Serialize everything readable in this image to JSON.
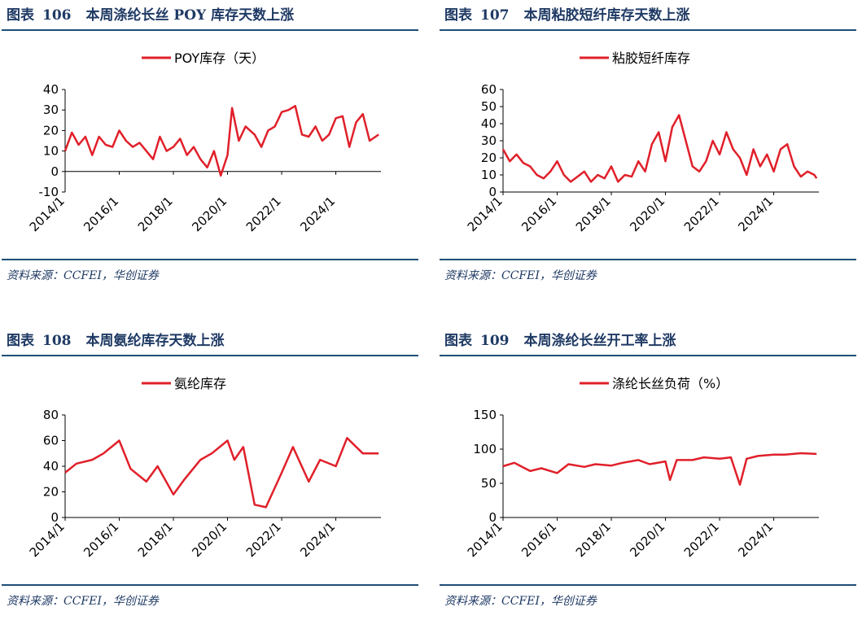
{
  "charts": [
    {
      "figure_label": "图表",
      "figure_number": "106",
      "title": "本周涤纶长丝 POY 库存天数上涨",
      "source": "资料来源：CCFEI，华创证券",
      "chart_data": {
        "type": "line",
        "legend": "POY库存（天）",
        "legend_position": "top-center",
        "grid": false,
        "ylim": [
          -10,
          40
        ],
        "yticks": [
          "-10",
          "0",
          "10",
          "20",
          "30",
          "40"
        ],
        "xticks": [
          "2014/1",
          "2016/1",
          "2018/1",
          "2020/1",
          "2022/1",
          "2024/1"
        ],
        "series": [
          {
            "color": "#e0202a",
            "x": [
              "2014/1",
              "2014/4",
              "2014/7",
              "2014/10",
              "2015/1",
              "2015/4",
              "2015/7",
              "2015/10",
              "2016/1",
              "2016/4",
              "2016/7",
              "2016/10",
              "2017/1",
              "2017/4",
              "2017/7",
              "2017/10",
              "2018/1",
              "2018/4",
              "2018/7",
              "2018/10",
              "2019/1",
              "2019/4",
              "2019/7",
              "2019/10",
              "2020/1",
              "2020/3",
              "2020/6",
              "2020/9",
              "2021/1",
              "2021/4",
              "2021/7",
              "2021/10",
              "2022/1",
              "2022/4",
              "2022/7",
              "2022/10",
              "2023/1",
              "2023/4",
              "2023/7",
              "2023/10",
              "2024/1",
              "2024/4",
              "2024/7",
              "2024/10",
              "2025/1",
              "2025/4",
              "2025/8"
            ],
            "values": [
              10,
              19,
              13,
              17,
              8,
              17,
              13,
              12,
              20,
              15,
              12,
              14,
              10,
              6,
              17,
              10,
              12,
              16,
              8,
              12,
              6,
              2,
              10,
              -2,
              8,
              31,
              15,
              22,
              18,
              12,
              20,
              22,
              29,
              30,
              32,
              18,
              17,
              22,
              15,
              18,
              26,
              27,
              12,
              24,
              28,
              15,
              18
            ]
          }
        ]
      }
    },
    {
      "figure_label": "图表",
      "figure_number": "107",
      "title": "本周粘胶短纤库存天数上涨",
      "source": "资料来源：CCFEI，华创证券",
      "chart_data": {
        "type": "line",
        "legend": "粘胶短纤库存",
        "legend_position": "top-center",
        "grid": false,
        "ylim": [
          0,
          60
        ],
        "yticks": [
          "0",
          "10",
          "20",
          "30",
          "40",
          "50",
          "60"
        ],
        "xticks": [
          "2014/1",
          "2016/1",
          "2018/1",
          "2020/1",
          "2022/1",
          "2024/1"
        ],
        "series": [
          {
            "color": "#e0202a",
            "x": [
              "2014/1",
              "2014/4",
              "2014/7",
              "2014/10",
              "2015/1",
              "2015/4",
              "2015/7",
              "2015/10",
              "2016/1",
              "2016/4",
              "2016/7",
              "2016/10",
              "2017/1",
              "2017/4",
              "2017/7",
              "2017/10",
              "2018/1",
              "2018/4",
              "2018/7",
              "2018/10",
              "2019/1",
              "2019/4",
              "2019/7",
              "2019/10",
              "2020/1",
              "2020/4",
              "2020/7",
              "2020/10",
              "2021/1",
              "2021/4",
              "2021/7",
              "2021/10",
              "2022/1",
              "2022/4",
              "2022/7",
              "2022/10",
              "2023/1",
              "2023/4",
              "2023/7",
              "2023/10",
              "2024/1",
              "2024/4",
              "2024/7",
              "2024/10",
              "2025/1",
              "2025/4",
              "2025/7",
              "2025/8"
            ],
            "values": [
              25,
              18,
              22,
              17,
              15,
              10,
              8,
              12,
              18,
              10,
              6,
              9,
              12,
              6,
              10,
              8,
              15,
              6,
              10,
              9,
              18,
              12,
              28,
              35,
              18,
              38,
              45,
              30,
              15,
              12,
              18,
              30,
              22,
              35,
              25,
              20,
              10,
              25,
              15,
              22,
              12,
              25,
              28,
              15,
              9,
              12,
              10,
              8
            ]
          }
        ]
      }
    },
    {
      "figure_label": "图表",
      "figure_number": "108",
      "title": "本周氨纶库存天数上涨",
      "source": "资料来源：CCFEI，华创证券",
      "chart_data": {
        "type": "line",
        "legend": "氨纶库存",
        "legend_position": "top-center",
        "grid": false,
        "ylim": [
          0,
          80
        ],
        "yticks": [
          "0",
          "20",
          "40",
          "60",
          "80"
        ],
        "xticks": [
          "2014/1",
          "2016/1",
          "2018/1",
          "2020/1",
          "2022/1",
          "2024/1"
        ],
        "series": [
          {
            "color": "#e0202a",
            "x": [
              "2014/1",
              "2014/6",
              "2015/1",
              "2015/6",
              "2016/1",
              "2016/6",
              "2017/1",
              "2017/6",
              "2018/1",
              "2018/6",
              "2019/1",
              "2019/6",
              "2020/1",
              "2020/4",
              "2020/8",
              "2021/1",
              "2021/6",
              "2022/1",
              "2022/6",
              "2023/1",
              "2023/6",
              "2024/1",
              "2024/6",
              "2025/1",
              "2025/8"
            ],
            "values": [
              35,
              42,
              45,
              50,
              60,
              38,
              28,
              40,
              18,
              30,
              45,
              50,
              60,
              45,
              55,
              10,
              8,
              35,
              55,
              28,
              45,
              40,
              62,
              50,
              50
            ]
          }
        ]
      }
    },
    {
      "figure_label": "图表",
      "figure_number": "109",
      "title": "本周涤纶长丝开工率上涨",
      "source": "资料来源：CCFEI，华创证券",
      "chart_data": {
        "type": "line",
        "legend": "涤纶长丝负荷（%）",
        "legend_position": "top-center",
        "grid": false,
        "ylim": [
          0,
          150
        ],
        "yticks": [
          "0",
          "50",
          "100",
          "150"
        ],
        "xticks": [
          "2014/1",
          "2016/1",
          "2018/1",
          "2020/1",
          "2022/1",
          "2024/1"
        ],
        "series": [
          {
            "color": "#e0202a",
            "x": [
              "2014/1",
              "2014/6",
              "2015/1",
              "2015/6",
              "2016/1",
              "2016/6",
              "2017/1",
              "2017/6",
              "2018/1",
              "2018/6",
              "2019/1",
              "2019/6",
              "2020/1",
              "2020/3",
              "2020/6",
              "2021/1",
              "2021/6",
              "2022/1",
              "2022/6",
              "2022/10",
              "2023/1",
              "2023/6",
              "2024/1",
              "2024/6",
              "2025/1",
              "2025/8"
            ],
            "values": [
              75,
              80,
              68,
              72,
              65,
              78,
              74,
              78,
              76,
              80,
              84,
              78,
              82,
              55,
              84,
              84,
              88,
              86,
              88,
              48,
              86,
              90,
              92,
              92,
              94,
              93
            ]
          }
        ]
      }
    }
  ]
}
